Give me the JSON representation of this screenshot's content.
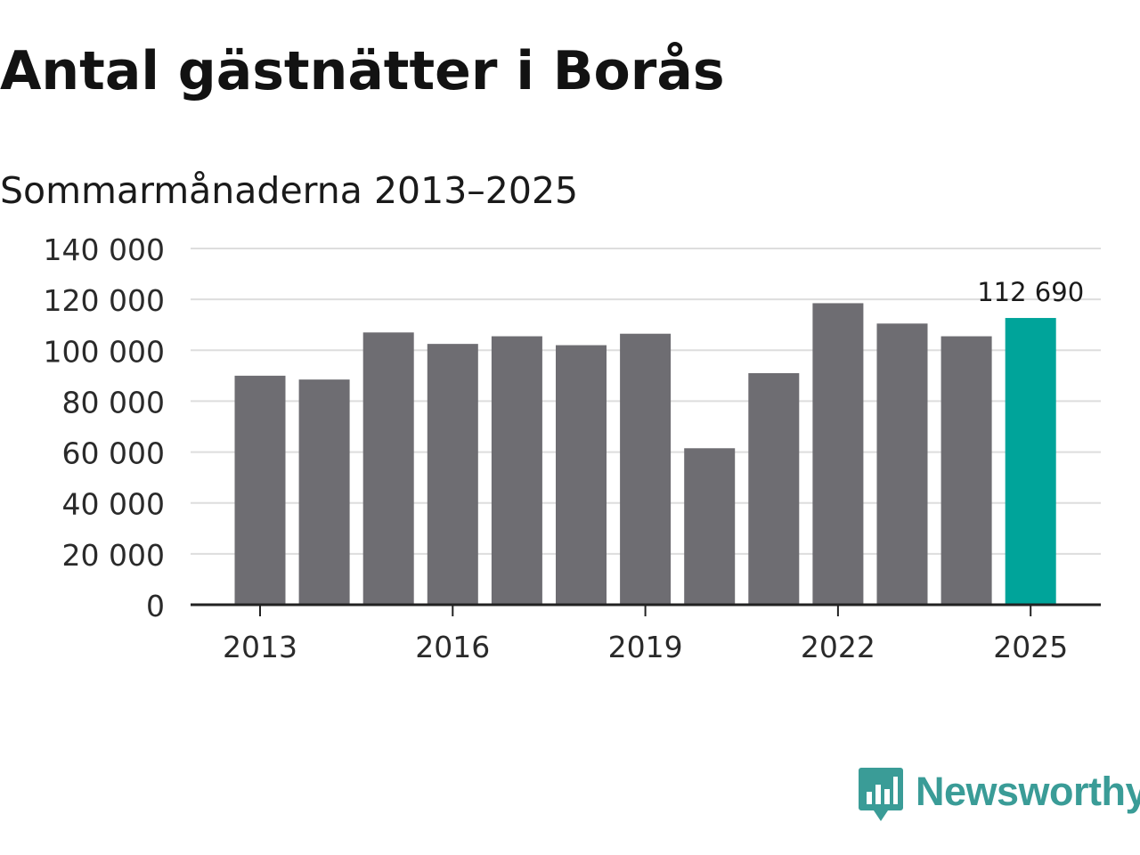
{
  "colors": {
    "bar": "#6e6d72",
    "highlight": "#00a49a",
    "grid": "#dddddd",
    "axis": "#222222",
    "logo": "#3a9c97"
  },
  "chart_data": {
    "type": "bar",
    "title": "Antal gästnätter i Borås",
    "subtitle": "Sommarmånaderna 2013–2025",
    "xlabel": "",
    "ylabel": "",
    "categories": [
      "2013",
      "2014",
      "2015",
      "2016",
      "2017",
      "2018",
      "2019",
      "2020",
      "2021",
      "2022",
      "2023",
      "2024",
      "2025"
    ],
    "values": [
      90000,
      88500,
      107000,
      102500,
      105500,
      102000,
      106500,
      61500,
      91000,
      118500,
      110500,
      105500,
      112690
    ],
    "highlight_index": 12,
    "highlight_label": "112 690",
    "ylim": [
      0,
      140000
    ],
    "y_ticks": [
      {
        "value": 0,
        "label": "0"
      },
      {
        "value": 20000,
        "label": "20 000"
      },
      {
        "value": 40000,
        "label": "40 000"
      },
      {
        "value": 60000,
        "label": "60 000"
      },
      {
        "value": 80000,
        "label": "80 000"
      },
      {
        "value": 100000,
        "label": "100 000"
      },
      {
        "value": 120000,
        "label": "120 000"
      },
      {
        "value": 140000,
        "label": "140 000"
      }
    ],
    "x_ticks": [
      "2013",
      "2016",
      "2019",
      "2022",
      "2025"
    ],
    "grid": true,
    "legend": "none"
  },
  "brand": {
    "name": "Newsworthy",
    "icon": "newsworthy-logo-icon"
  }
}
